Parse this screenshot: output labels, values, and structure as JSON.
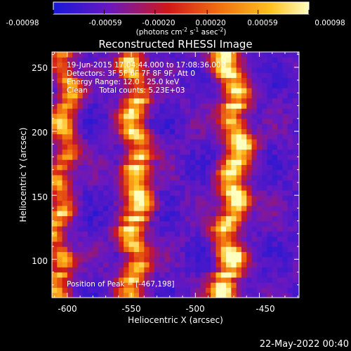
{
  "colorbar": {
    "ticks": [
      "-0.00098",
      "-0.00059",
      "-0.00020",
      "0.00020",
      "0.00059",
      "0.00098"
    ],
    "tick_values": [
      -0.00098,
      -0.00059,
      -0.0002,
      0.0002,
      0.00059,
      0.00098
    ],
    "unit_prefix": "(photons cm",
    "unit_exp1": "-2",
    "unit_mid1": " s",
    "unit_exp2": "-1",
    "unit_mid2": " asec",
    "unit_exp3": "-2",
    "unit_suffix": ")",
    "colors": [
      "#1818d8",
      "#6a18c0",
      "#d01818",
      "#f07010",
      "#ffc020",
      "#ffffc0"
    ]
  },
  "chart_data": {
    "type": "heatmap",
    "title": "Reconstructed RHESSI Image",
    "xlabel": "Heliocentric X (arcsec)",
    "ylabel": "Heliocentric Y (arcsec)",
    "xlim": [
      -612,
      -419
    ],
    "ylim": [
      70,
      262
    ],
    "x_ticks": [
      -600,
      -550,
      -500,
      -450
    ],
    "y_ticks": [
      100,
      150,
      200,
      250
    ],
    "x_tick_labels": [
      "-600",
      "-550",
      "-500",
      "-450"
    ],
    "y_tick_labels": [
      "100",
      "150",
      "200",
      "250"
    ],
    "peak_position": [
      -467,
      198
    ],
    "annotations": [
      "19-Jun-2015 17:04:44.000 to 17:08:36.000",
      "Detectors: 3F 5F 6F 7F 8F 9F, Att 0",
      "Energy Range: 12.0 - 25.0 keV",
      "Clean     Total counts: 5.23E+03",
      "Position of Peak = [-467,198]"
    ],
    "ridges": [
      {
        "y": [
          70,
          120,
          180,
          230,
          262
        ],
        "x": [
          -605,
          -608,
          -603,
          -600,
          -603
        ],
        "amp": 0.75,
        "width": 9
      },
      {
        "y": [
          70,
          110,
          160,
          200,
          262
        ],
        "x": [
          -548,
          -548,
          -545,
          -547,
          -548
        ],
        "amp": 0.85,
        "width": 10
      },
      {
        "y": [
          70,
          110,
          150,
          200,
          240,
          262
        ],
        "x": [
          -475,
          -475,
          -470,
          -467,
          -472,
          -475
        ],
        "amp": 1.0,
        "width": 10
      }
    ],
    "blobs": [
      {
        "x": -543,
        "y": 165,
        "amp": 0.3,
        "r": 9
      },
      {
        "x": -466,
        "y": 198,
        "amp": 0.15,
        "r": 8
      }
    ]
  },
  "footer": {
    "date": "22-May-2022 00:40"
  }
}
